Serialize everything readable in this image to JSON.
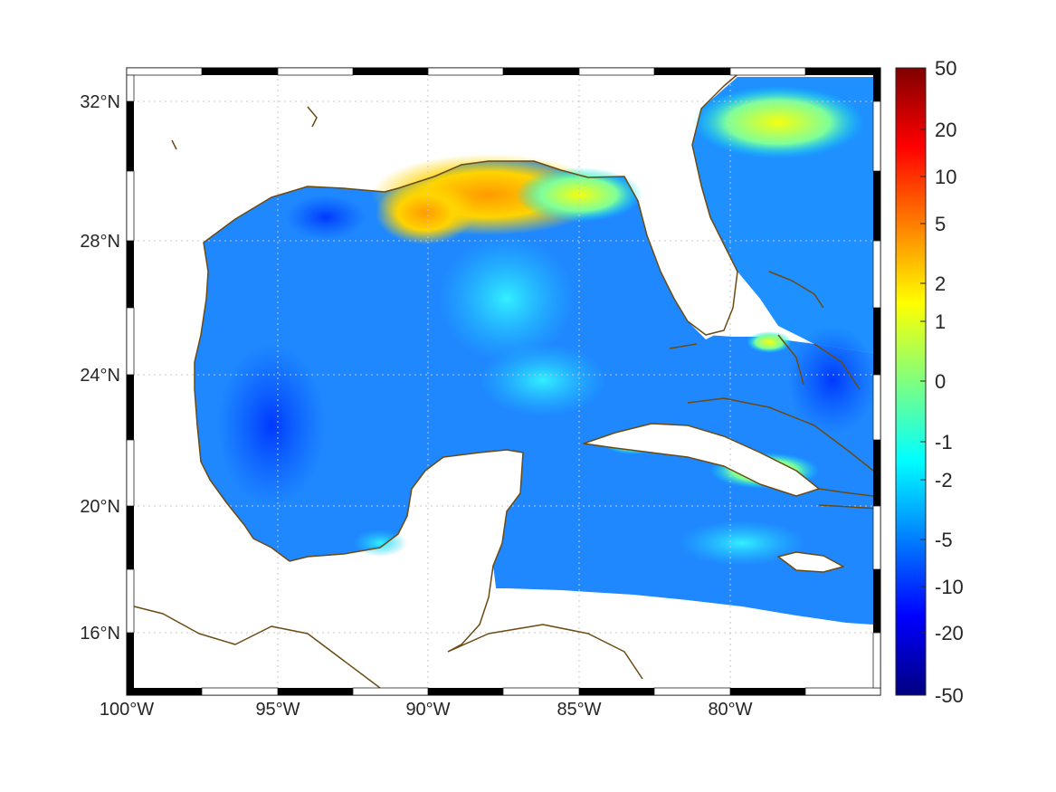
{
  "map": {
    "lon_range": [
      -100,
      -75
    ],
    "lat_range": [
      14.5,
      32.5
    ],
    "lon_ticks": [
      "100°W",
      "95°W",
      "90°W",
      "85°W",
      "80°W"
    ],
    "lat_ticks": [
      "32°N",
      "28°N",
      "24°N",
      "20°N",
      "16°N"
    ],
    "grid": true,
    "coastline_color": "#6b4a12"
  },
  "colorbar": {
    "labels": [
      "50",
      "20",
      "10",
      "5",
      "2",
      "1",
      "0",
      "-1",
      "-2",
      "-5",
      "-10",
      "-20",
      "-50"
    ],
    "colormap": "jet",
    "colors": [
      "#7f0000",
      "#ff0000",
      "#ff7f00",
      "#ffff00",
      "#7fff7f",
      "#00ffff",
      "#007fff",
      "#0000ff",
      "#00007f"
    ]
  }
}
